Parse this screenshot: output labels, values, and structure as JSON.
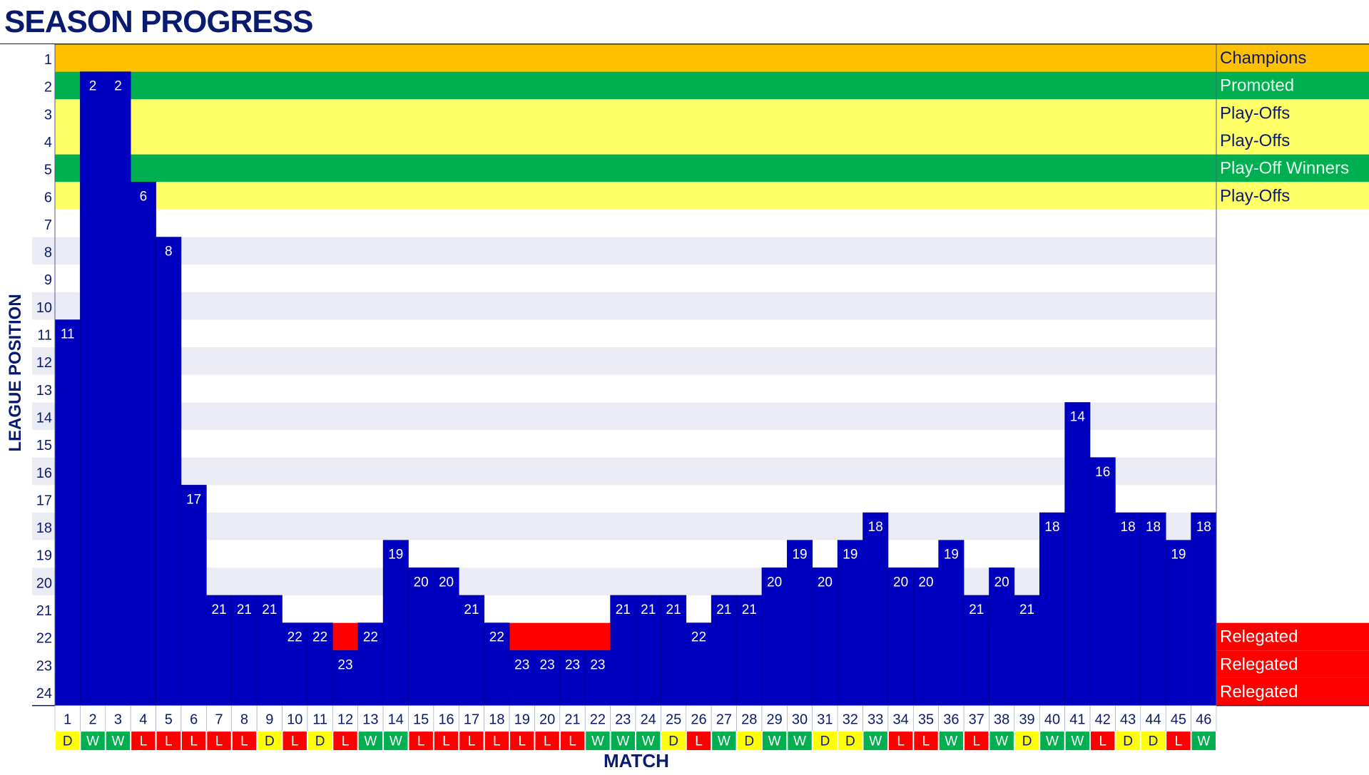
{
  "title": "SEASON PROGRESS",
  "chart_data": {
    "type": "bar",
    "title": "SEASON PROGRESS",
    "xlabel": "MATCH",
    "ylabel": "LEAGUE POSITION",
    "y_axis_inverted": true,
    "ylim": [
      1,
      24
    ],
    "categories": [
      "1",
      "2",
      "3",
      "4",
      "5",
      "6",
      "7",
      "8",
      "9",
      "10",
      "11",
      "12",
      "13",
      "14",
      "15",
      "16",
      "17",
      "18",
      "19",
      "20",
      "21",
      "22",
      "23",
      "24",
      "25",
      "26",
      "27",
      "28",
      "29",
      "30",
      "31",
      "32",
      "33",
      "34",
      "35",
      "36",
      "37",
      "38",
      "39",
      "40",
      "41",
      "42",
      "43",
      "44",
      "45",
      "46"
    ],
    "positions": [
      11,
      2,
      2,
      6,
      8,
      17,
      21,
      21,
      21,
      22,
      22,
      23,
      22,
      19,
      20,
      20,
      21,
      22,
      23,
      23,
      23,
      23,
      21,
      21,
      21,
      22,
      21,
      21,
      20,
      19,
      20,
      19,
      18,
      20,
      20,
      19,
      21,
      20,
      21,
      18,
      14,
      16,
      18,
      18,
      19,
      18
    ],
    "results": [
      "D",
      "W",
      "W",
      "L",
      "L",
      "L",
      "L",
      "L",
      "D",
      "L",
      "D",
      "L",
      "W",
      "W",
      "L",
      "L",
      "L",
      "L",
      "L",
      "L",
      "L",
      "W",
      "W",
      "W",
      "D",
      "L",
      "W",
      "D",
      "W",
      "W",
      "D",
      "D",
      "W",
      "L",
      "L",
      "W",
      "L",
      "W",
      "D",
      "W",
      "W",
      "L",
      "D",
      "D",
      "L",
      "W"
    ],
    "y_tick_labels": [
      "1",
      "2",
      "3",
      "4",
      "5",
      "6",
      "7",
      "8",
      "9",
      "10",
      "11",
      "12",
      "13",
      "14",
      "15",
      "16",
      "17",
      "18",
      "19",
      "20",
      "21",
      "22",
      "23",
      "24"
    ],
    "zones": [
      {
        "positions": [
          1
        ],
        "label": "Champions",
        "color": "#ffc000",
        "text_color": "#0a1a6e"
      },
      {
        "positions": [
          2
        ],
        "label": "Promoted",
        "color": "#00b050",
        "text_color": "#e8fff0"
      },
      {
        "positions": [
          3
        ],
        "label": "Play-Offs",
        "color": "#ffff66",
        "text_color": "#0a1a6e"
      },
      {
        "positions": [
          4
        ],
        "label": "Play-Offs",
        "color": "#ffff66",
        "text_color": "#0a1a6e"
      },
      {
        "positions": [
          5
        ],
        "label": "Play-Off Winners",
        "color": "#00b050",
        "text_color": "#e8fff0"
      },
      {
        "positions": [
          6
        ],
        "label": "Play-Offs",
        "color": "#ffff66",
        "text_color": "#0a1a6e"
      },
      {
        "positions": [
          22
        ],
        "label": "Relegated",
        "color": "#ff0000",
        "text_color": "#ffffff"
      },
      {
        "positions": [
          23
        ],
        "label": "Relegated",
        "color": "#ff0000",
        "text_color": "#ffffff"
      },
      {
        "positions": [
          24
        ],
        "label": "Relegated",
        "color": "#ff0000",
        "text_color": "#ffffff"
      }
    ],
    "bar_color": "#0000c0",
    "bar_label_color": "#ffffff",
    "band_colors": [
      "#ffffff",
      "#ebebf5"
    ],
    "result_colors": {
      "W": "#00b050",
      "D": "#ffff00",
      "L": "#ff0000"
    },
    "result_text_colors": {
      "W": "#ffffff",
      "D": "#0a1a6e",
      "L": "#ffffff"
    },
    "axis_color": "#0a1a6e"
  }
}
